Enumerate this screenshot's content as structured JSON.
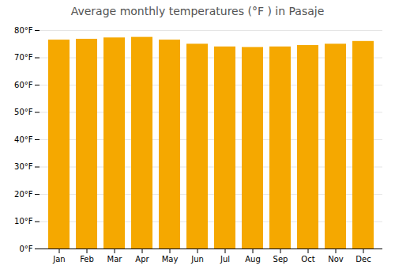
{
  "chart_data": {
    "type": "bar",
    "title": "Average monthly temperatures (°F ) in Pasaje",
    "categories": [
      "Jan",
      "Feb",
      "Mar",
      "Apr",
      "May",
      "Jun",
      "Jul",
      "Aug",
      "Sep",
      "Oct",
      "Nov",
      "Dec"
    ],
    "values": [
      76.5,
      76.8,
      77.3,
      77.5,
      76.5,
      75.0,
      74.0,
      73.8,
      74.0,
      74.5,
      75.0,
      76.0
    ],
    "color": "#F5A800",
    "ylim": [
      0,
      80
    ],
    "yticks": [
      {
        "value": 0,
        "label": "0°F"
      },
      {
        "value": 10,
        "label": "10°F"
      },
      {
        "value": 20,
        "label": "20°F"
      },
      {
        "value": 30,
        "label": "30°F"
      },
      {
        "value": 40,
        "label": "40°F"
      },
      {
        "value": 50,
        "label": "50°F"
      },
      {
        "value": 60,
        "label": "60°F"
      },
      {
        "value": 70,
        "label": "70°F"
      },
      {
        "value": 80,
        "label": "80°F"
      }
    ],
    "grid": true
  }
}
